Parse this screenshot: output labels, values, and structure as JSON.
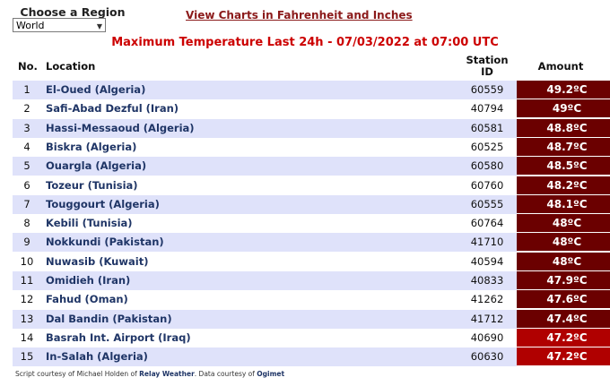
{
  "region": {
    "label": "Choose a Region",
    "selected": "World"
  },
  "view_link": "View Charts in Fahrenheit and Inches",
  "title": "Maximum Temperature Last 24h - 07/03/2022 at 07:00 UTC",
  "table": {
    "headers": {
      "no": "No.",
      "location": "Location",
      "station_line1": "Station",
      "station_line2": "ID",
      "amount": "Amount"
    },
    "rows": [
      {
        "no": "1",
        "location": "El-Oued (Algeria)",
        "station": "60559",
        "amount": "49.2ºC",
        "color": "#6b0000"
      },
      {
        "no": "2",
        "location": "Safi-Abad Dezful (Iran)",
        "station": "40794",
        "amount": "49ºC",
        "color": "#6b0000"
      },
      {
        "no": "3",
        "location": "Hassi-Messaoud (Algeria)",
        "station": "60581",
        "amount": "48.8ºC",
        "color": "#6b0000"
      },
      {
        "no": "4",
        "location": "Biskra (Algeria)",
        "station": "60525",
        "amount": "48.7ºC",
        "color": "#6b0000"
      },
      {
        "no": "5",
        "location": "Ouargla (Algeria)",
        "station": "60580",
        "amount": "48.5ºC",
        "color": "#6b0000"
      },
      {
        "no": "6",
        "location": "Tozeur (Tunisia)",
        "station": "60760",
        "amount": "48.2ºC",
        "color": "#6b0000"
      },
      {
        "no": "7",
        "location": "Touggourt (Algeria)",
        "station": "60555",
        "amount": "48.1ºC",
        "color": "#6b0000"
      },
      {
        "no": "8",
        "location": "Kebili (Tunisia)",
        "station": "60764",
        "amount": "48ºC",
        "color": "#6b0000"
      },
      {
        "no": "9",
        "location": "Nokkundi (Pakistan)",
        "station": "41710",
        "amount": "48ºC",
        "color": "#6b0000"
      },
      {
        "no": "10",
        "location": "Nuwasib (Kuwait)",
        "station": "40594",
        "amount": "48ºC",
        "color": "#6b0000"
      },
      {
        "no": "11",
        "location": "Omidieh (Iran)",
        "station": "40833",
        "amount": "47.9ºC",
        "color": "#6b0000"
      },
      {
        "no": "12",
        "location": "Fahud (Oman)",
        "station": "41262",
        "amount": "47.6ºC",
        "color": "#6b0000"
      },
      {
        "no": "13",
        "location": "Dal Bandin (Pakistan)",
        "station": "41712",
        "amount": "47.4ºC",
        "color": "#6b0000"
      },
      {
        "no": "14",
        "location": "Basrah Int. Airport (Iraq)",
        "station": "40690",
        "amount": "47.2ºC",
        "color": "#b00000"
      },
      {
        "no": "15",
        "location": "In-Salah (Algeria)",
        "station": "60630",
        "amount": "47.2ºC",
        "color": "#b00000"
      }
    ]
  },
  "footer": {
    "prefix": "Script courtesy of  Michael Holden of ",
    "relay": "Relay Weather",
    "middle": ". Data courtesy of ",
    "ogimet": "Ogimet"
  }
}
